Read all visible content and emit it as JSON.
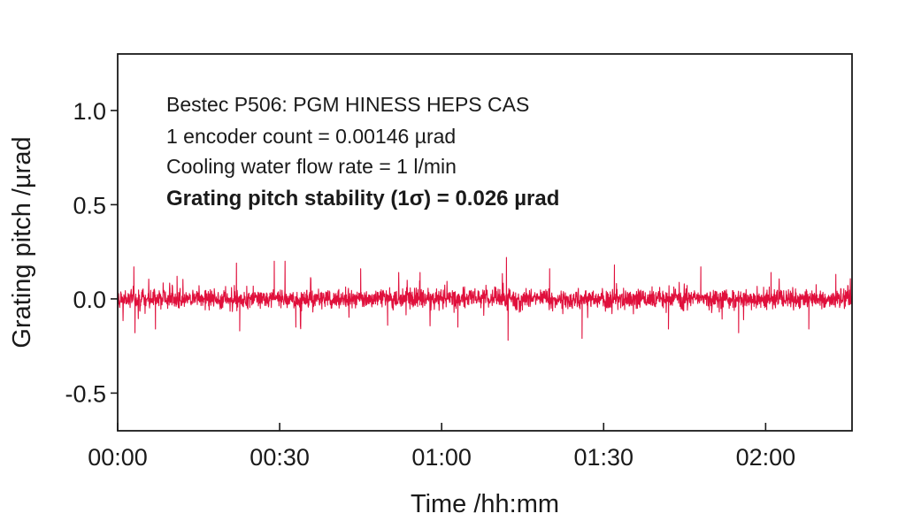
{
  "chart_data": {
    "type": "line",
    "title": "",
    "xlabel": "Time /hh:mm",
    "ylabel": "Grating pitch /µrad",
    "x_unit": "minutes",
    "xlim": [
      0,
      136
    ],
    "ylim": [
      -0.7,
      1.3
    ],
    "x_ticks": [
      {
        "value": 0,
        "label": "00:00"
      },
      {
        "value": 30,
        "label": "00:30"
      },
      {
        "value": 60,
        "label": "01:00"
      },
      {
        "value": 90,
        "label": "01:30"
      },
      {
        "value": 120,
        "label": "02:00"
      }
    ],
    "y_ticks": [
      {
        "value": 1.0,
        "label": "1.0"
      },
      {
        "value": 0.5,
        "label": "0.5"
      },
      {
        "value": 0.0,
        "label": "0.0"
      },
      {
        "value": -0.5,
        "label": "-0.5"
      }
    ],
    "grid": false,
    "legend": "none",
    "series": [
      {
        "color": "#e0103c",
        "mean": 0.0,
        "sigma": 0.026,
        "spikes": [
          {
            "x": 3,
            "y": 0.17
          },
          {
            "x": 3.2,
            "y": -0.18
          },
          {
            "x": 7,
            "y": -0.16
          },
          {
            "x": 11,
            "y": 0.12
          },
          {
            "x": 22,
            "y": 0.19
          },
          {
            "x": 22.6,
            "y": -0.17
          },
          {
            "x": 29,
            "y": 0.2
          },
          {
            "x": 31,
            "y": 0.2
          },
          {
            "x": 33,
            "y": -0.15
          },
          {
            "x": 45,
            "y": 0.16
          },
          {
            "x": 50,
            "y": -0.14
          },
          {
            "x": 56,
            "y": 0.14
          },
          {
            "x": 63,
            "y": -0.15
          },
          {
            "x": 72,
            "y": 0.22
          },
          {
            "x": 72.3,
            "y": -0.22
          },
          {
            "x": 80,
            "y": 0.16
          },
          {
            "x": 86,
            "y": -0.21
          },
          {
            "x": 92,
            "y": 0.18
          },
          {
            "x": 102,
            "y": -0.16
          },
          {
            "x": 108,
            "y": 0.17
          },
          {
            "x": 115,
            "y": -0.18
          },
          {
            "x": 121,
            "y": 0.14
          },
          {
            "x": 128,
            "y": -0.16
          },
          {
            "x": 133,
            "y": 0.13
          }
        ]
      }
    ]
  },
  "annotations": [
    {
      "text": "Bestec P506: PGM HINESS HEPS CAS",
      "bold": false
    },
    {
      "text": "1 encoder count = 0.00146 µrad",
      "bold": false
    },
    {
      "text": "Cooling water flow rate = 1 l/min",
      "bold": false
    },
    {
      "text": "Grating pitch stability (1σ) = 0.026 µrad",
      "bold": true
    }
  ],
  "colors": {
    "series": "#e0103c",
    "axes": "#1a1a1a"
  }
}
